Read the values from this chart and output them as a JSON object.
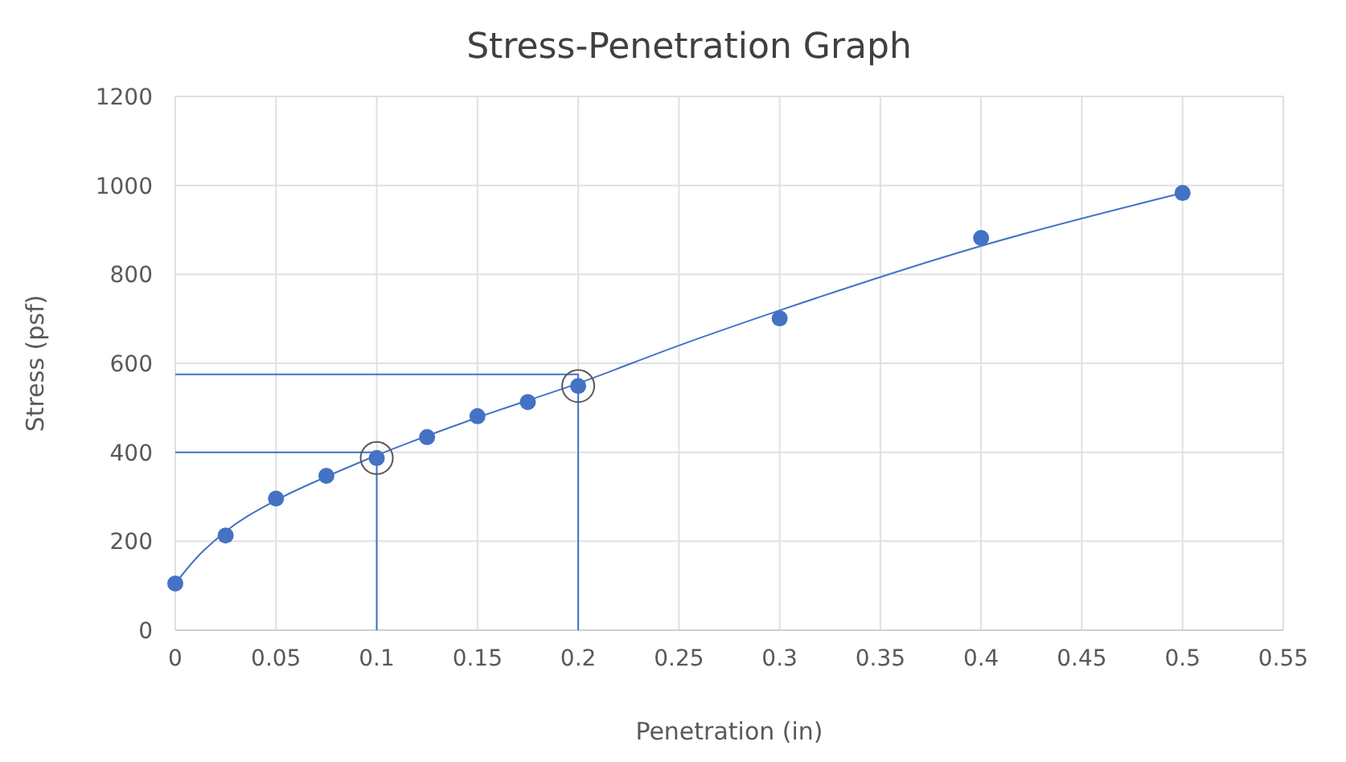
{
  "chart_data": {
    "type": "scatter",
    "title": "Stress-Penetration Graph",
    "xlabel": "Penetration (in)",
    "ylabel": "Stress (psf)",
    "xlim": [
      0,
      0.55
    ],
    "xticks": [
      0,
      0.05,
      0.1,
      0.15,
      0.2,
      0.25,
      0.3,
      0.35,
      0.4,
      0.45,
      0.5,
      0.55
    ],
    "ylim": [
      0,
      1200
    ],
    "yticks": [
      0,
      200,
      400,
      600,
      800,
      1000,
      1200
    ],
    "grid": true,
    "series": [
      {
        "type": "line",
        "color": "#4472c4",
        "x": [
          0,
          0.01,
          0.025,
          0.05,
          0.075,
          0.1,
          0.15,
          0.2,
          0.25,
          0.3,
          0.4,
          0.5
        ],
        "values": [
          105,
          160,
          222,
          292,
          345,
          393,
          478,
          555,
          640,
          719,
          864,
          983
        ]
      },
      {
        "type": "line",
        "color": "#4472c4",
        "x": [
          0,
          0.1,
          0.1
        ],
        "values": [
          400,
          400,
          0
        ]
      },
      {
        "type": "line",
        "color": "#4472c4",
        "x": [
          0,
          0.2,
          0.2
        ],
        "values": [
          575,
          575,
          0
        ]
      },
      {
        "color": "#4472c4",
        "marker": "circle",
        "x": [
          0,
          0.025,
          0.05,
          0.075,
          0.1,
          0.125,
          0.15,
          0.175,
          0.2,
          0.3,
          0.4,
          0.5
        ],
        "values": [
          105,
          213,
          296,
          347,
          387,
          434,
          481,
          513,
          549,
          701,
          882,
          983
        ]
      },
      {
        "color": "#595959",
        "marker": "circle",
        "x": [
          0.1,
          0.2
        ],
        "values": [
          387,
          549
        ]
      }
    ]
  }
}
